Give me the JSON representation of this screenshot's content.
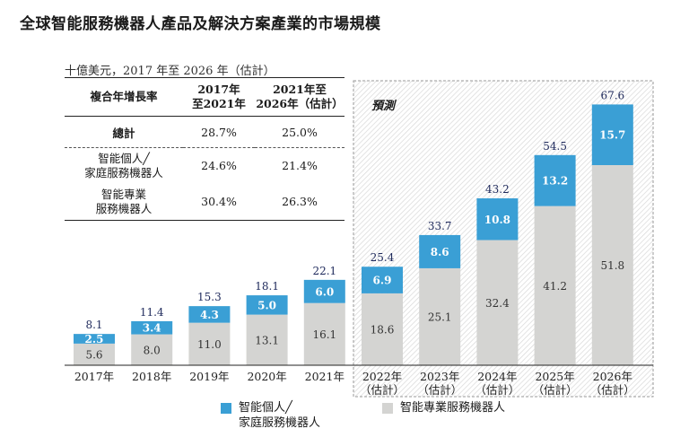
{
  "title": "全球智能服務機器人產品及解決方案產業的市場規模",
  "unit_label": "十億美元，2017 年至 2026 年（估計）",
  "forecast_label": "預測",
  "cagr_table": {
    "header": {
      "col1": "複合年增長率",
      "col2_line1": "2017年",
      "col2_line2": "至2021年",
      "col3_line1": "2021年至",
      "col3_line2": "2026年（估計）"
    },
    "rows": [
      {
        "label": "總計",
        "v1": "28.7%",
        "v2": "25.0%"
      },
      {
        "label_line1": "智能個人╱",
        "label_line2": "家庭服務機器人",
        "v1": "24.6%",
        "v2": "21.4%"
      },
      {
        "label_line1": "智能專業",
        "label_line2": "服務機器人",
        "v1": "30.4%",
        "v2": "26.3%"
      }
    ]
  },
  "legend": [
    {
      "line1": "智能個人╱",
      "line2": "家庭服務機器人",
      "color": "#3a9fd5"
    },
    {
      "line1": "智能專業服務機器人",
      "line2": "",
      "color": "#d4d4d2"
    }
  ],
  "chart_data": {
    "type": "bar",
    "stacked": true,
    "categories": [
      "2017年",
      "2018年",
      "2019年",
      "2020年",
      "2021年",
      "2022年（估計）",
      "2023年（估計）",
      "2024年（估計）",
      "2025年（估計）",
      "2026年（估計）"
    ],
    "forecast_from_index": 5,
    "series": [
      {
        "name": "智能專業服務機器人",
        "values": [
          5.6,
          8.0,
          11.0,
          13.1,
          16.1,
          18.6,
          25.1,
          32.4,
          41.2,
          51.8
        ],
        "color": "#d4d4d2"
      },
      {
        "name": "智能個人╱家庭服務機器人",
        "values": [
          2.5,
          3.4,
          4.3,
          5.0,
          6.0,
          6.9,
          8.6,
          10.8,
          13.2,
          15.7
        ],
        "color": "#3a9fd5"
      }
    ],
    "totals": [
      8.1,
      11.4,
      15.3,
      18.1,
      22.1,
      25.4,
      33.7,
      43.2,
      54.5,
      67.6
    ],
    "ylim": [
      0,
      70
    ]
  }
}
